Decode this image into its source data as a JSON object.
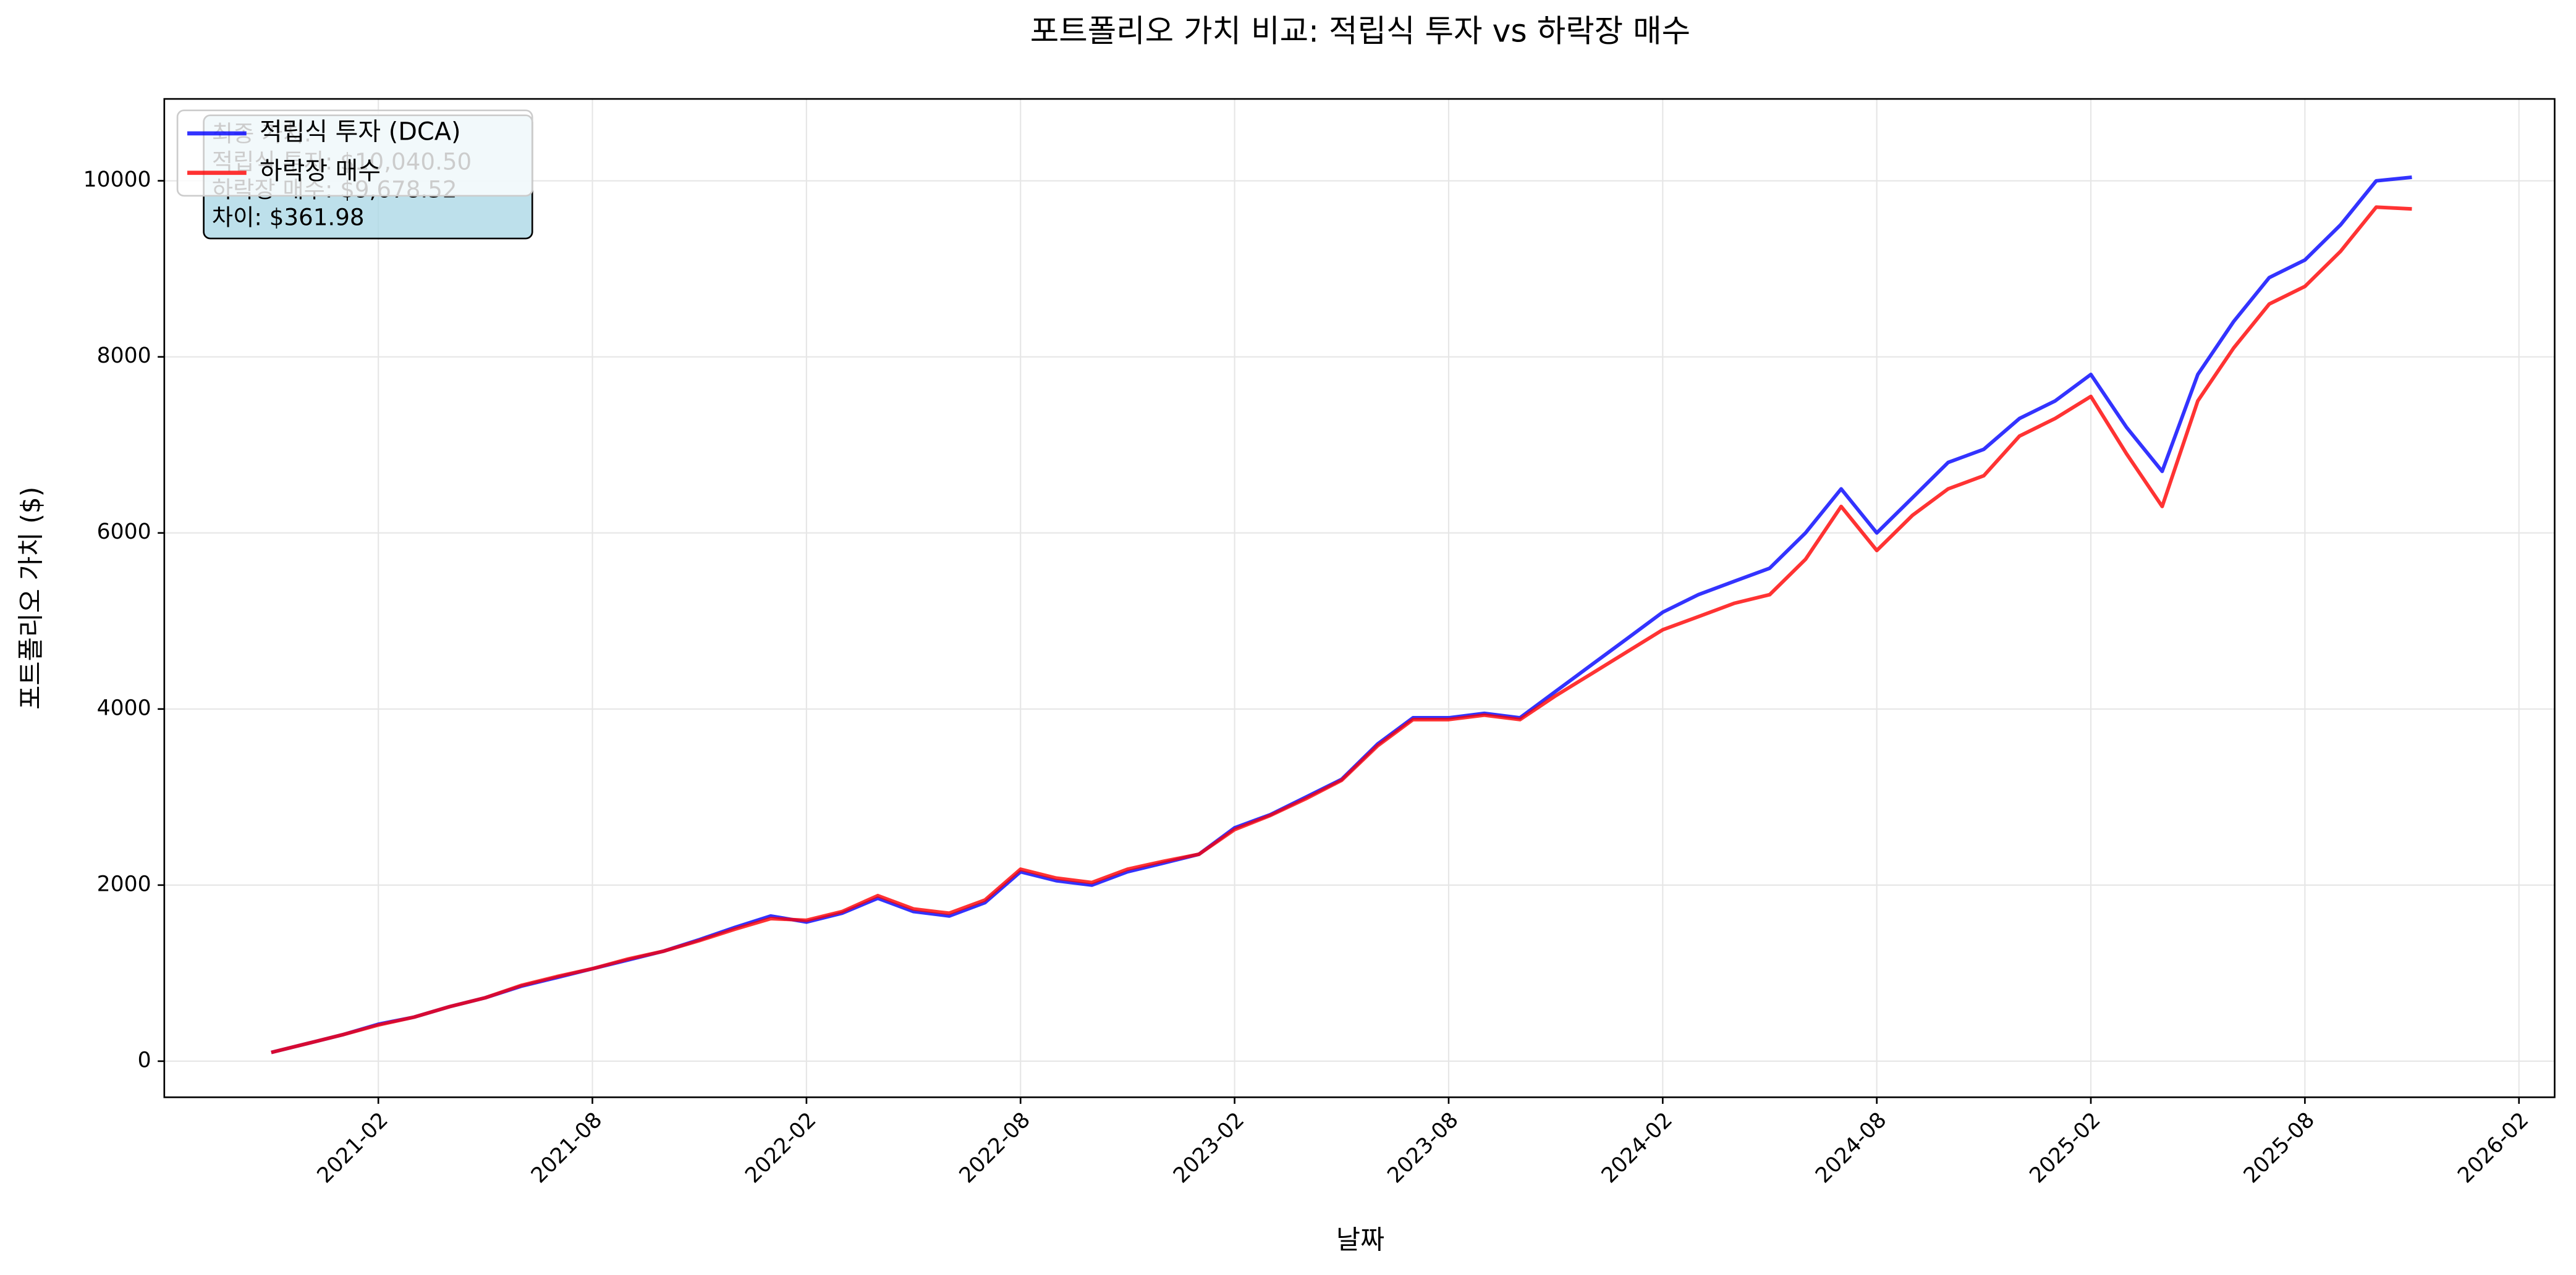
{
  "chart_data": {
    "type": "line",
    "title": "포트폴리오 가치 비교: 적립식 투자 vs 하락장 매수",
    "x_label": "날짜",
    "y_label": "포트폴리오 가치 ($)",
    "x": [
      "2020-11",
      "2020-12",
      "2021-01",
      "2021-02",
      "2021-03",
      "2021-04",
      "2021-05",
      "2021-06",
      "2021-07",
      "2021-08",
      "2021-09",
      "2021-10",
      "2021-11",
      "2021-12",
      "2022-01",
      "2022-02",
      "2022-03",
      "2022-04",
      "2022-05",
      "2022-06",
      "2022-07",
      "2022-08",
      "2022-09",
      "2022-10",
      "2022-11",
      "2022-12",
      "2023-01",
      "2023-02",
      "2023-03",
      "2023-04",
      "2023-05",
      "2023-06",
      "2023-07",
      "2023-08",
      "2023-09",
      "2023-10",
      "2023-11",
      "2023-12",
      "2024-01",
      "2024-02",
      "2024-03",
      "2024-04",
      "2024-05",
      "2024-06",
      "2024-07",
      "2024-08",
      "2024-09",
      "2024-10",
      "2024-11",
      "2024-12",
      "2025-01",
      "2025-02",
      "2025-03",
      "2025-04",
      "2025-05",
      "2025-06",
      "2025-07",
      "2025-08",
      "2025-09",
      "2025-10",
      "2025-11"
    ],
    "series": [
      {
        "name": "적립식 투자 (DCA)",
        "color": "#0000ff",
        "values": [
          100,
          200,
          300,
          420,
          500,
          620,
          720,
          850,
          950,
          1050,
          1150,
          1250,
          1380,
          1520,
          1650,
          1580,
          1680,
          1850,
          1700,
          1650,
          1800,
          2150,
          2050,
          2000,
          2150,
          2250,
          2350,
          2650,
          2800,
          3000,
          3200,
          3600,
          3900,
          3900,
          3950,
          3900,
          4200,
          4500,
          4800,
          5100,
          5300,
          5450,
          5600,
          6000,
          6500,
          6000,
          6400,
          6800,
          6950,
          7300,
          7500,
          7800,
          7200,
          6700,
          7800,
          8400,
          8900,
          9100,
          9500,
          10000,
          10040
        ]
      },
      {
        "name": "하락장 매수",
        "color": "#ff0000",
        "values": [
          100,
          200,
          300,
          410,
          500,
          620,
          720,
          860,
          960,
          1050,
          1160,
          1250,
          1370,
          1500,
          1620,
          1600,
          1700,
          1880,
          1730,
          1680,
          1830,
          2180,
          2080,
          2030,
          2180,
          2270,
          2350,
          2630,
          2790,
          2980,
          3190,
          3580,
          3880,
          3880,
          3930,
          3880,
          4150,
          4400,
          4650,
          4900,
          5050,
          5200,
          5300,
          5700,
          6300,
          5800,
          6200,
          6500,
          6650,
          7100,
          7300,
          7550,
          6900,
          6300,
          7500,
          8100,
          8600,
          8800,
          9200,
          9700,
          9680
        ]
      }
    ],
    "xlim": [
      "2020-08",
      "2026-03"
    ],
    "xticks": [
      "2021-02",
      "2021-08",
      "2022-02",
      "2022-08",
      "2023-02",
      "2023-08",
      "2024-02",
      "2024-08",
      "2025-02",
      "2025-08",
      "2026-02"
    ],
    "ylim": [
      -410,
      10930
    ],
    "yticks": [
      0,
      2000,
      4000,
      6000,
      8000,
      10000
    ],
    "grid": true,
    "legend": "upper left",
    "annotation": [
      "최종 가치:",
      "적립식 투자: $10,040.50",
      "하락장 매수: $9,678.52",
      "차이: $361.98"
    ]
  }
}
